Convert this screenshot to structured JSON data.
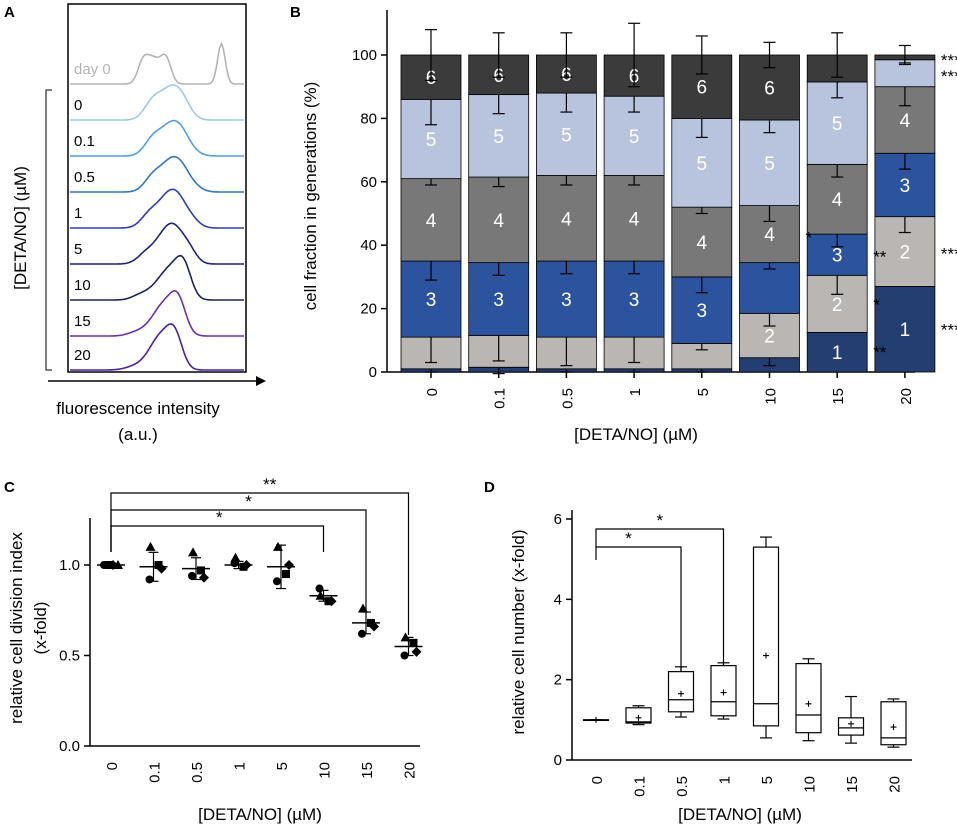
{
  "colors": {
    "gen": [
      "#243e72",
      "#b9b6b4",
      "#2c539e",
      "#787878",
      "#b8c4de",
      "#3b3b3b"
    ],
    "seg_label_dark": "#000000",
    "seg_label_light": "#ffffff",
    "hist_ctrl": "#b3b3b3"
  },
  "chart_data": [
    {
      "panel": "A",
      "type": "histogram",
      "title": "",
      "xlabel_line1": "fluorescence intensity",
      "xlabel_line2": "(a.u.)",
      "ylabel": "[DETA/NO] (µM)",
      "series": [
        {
          "name": "day 0",
          "color": "#b3b3b3"
        },
        {
          "name": "0",
          "color": "#9ecae8"
        },
        {
          "name": "0.1",
          "color": "#4f9fe0"
        },
        {
          "name": "0.5",
          "color": "#2f76c4"
        },
        {
          "name": "1",
          "color": "#2a3eb8"
        },
        {
          "name": "5",
          "color": "#1d2380"
        },
        {
          "name": "10",
          "color": "#1d2160"
        },
        {
          "name": "15",
          "color": "#6a2fb0"
        },
        {
          "name": "20",
          "color": "#4a1fa8"
        }
      ]
    },
    {
      "panel": "B",
      "type": "stacked-bar",
      "xlabel": "[DETA/NO] (µM)",
      "ylabel": "cell fraction in generations (%)",
      "ylim": [
        0,
        100
      ],
      "yticks": [
        "0",
        "20",
        "40",
        "60",
        "80",
        "100"
      ],
      "categories": [
        "0",
        "0.1",
        "0.5",
        "1",
        "5",
        "10",
        "15",
        "20"
      ],
      "series": [
        {
          "name": "1",
          "values": [
            1,
            1.5,
            1,
            1,
            1,
            4.5,
            12.5,
            27
          ]
        },
        {
          "name": "2",
          "values": [
            10,
            10,
            10,
            10,
            8,
            14,
            18,
            22
          ]
        },
        {
          "name": "3",
          "values": [
            24,
            23,
            24,
            24,
            21,
            16,
            13,
            20
          ]
        },
        {
          "name": "4",
          "values": [
            26,
            27,
            27,
            27,
            22,
            18,
            22,
            21
          ]
        },
        {
          "name": "5",
          "values": [
            25,
            26,
            26,
            25,
            28,
            27,
            26,
            8.5
          ]
        },
        {
          "name": "6",
          "values": [
            14,
            12.5,
            12,
            13,
            20,
            20.5,
            8.5,
            1.5
          ]
        }
      ],
      "errors": [
        [
          1,
          2,
          1,
          1,
          1,
          2.5,
          0,
          0
        ],
        [
          8,
          8,
          9,
          8,
          2,
          4,
          6,
          5
        ],
        [
          6,
          4,
          4,
          4,
          5,
          2,
          4,
          5
        ],
        [
          2,
          3,
          3,
          3,
          2,
          5,
          4,
          6
        ],
        [
          8,
          6,
          6,
          5,
          6,
          4,
          5,
          1
        ],
        [
          8,
          7,
          7,
          10,
          6,
          4,
          7,
          3
        ]
      ],
      "segment_labels": [
        [
          "",
          "",
          "",
          "",
          "",
          "",
          "1",
          "1"
        ],
        [
          "",
          "",
          "",
          "",
          "",
          "2",
          "2",
          "2"
        ],
        [
          "3",
          "3",
          "3",
          "3",
          "3",
          "",
          "3",
          "3"
        ],
        [
          "4",
          "4",
          "4",
          "4",
          "4",
          "4",
          "4",
          "4"
        ],
        [
          "5",
          "5",
          "5",
          "5",
          "5",
          "5",
          "5",
          ""
        ],
        [
          "6",
          "6",
          "6",
          "6",
          "6",
          "6",
          "",
          ""
        ]
      ],
      "annotations": [
        {
          "text": "***",
          "category": "20",
          "level": 99
        },
        {
          "text": "****",
          "category": "20",
          "level": 94
        },
        {
          "text": "*",
          "category": "10",
          "level": 43
        },
        {
          "text": "**",
          "category": "15",
          "level": 37
        },
        {
          "text": "***",
          "category": "20",
          "level": 38
        },
        {
          "text": "*",
          "category": "15",
          "level": 22
        },
        {
          "text": "****",
          "category": "20",
          "level": 14
        },
        {
          "text": "**",
          "category": "15",
          "level": 7
        }
      ]
    },
    {
      "panel": "C",
      "type": "scatter",
      "xlabel": "[DETA/NO] (µM)",
      "ylabel_line1": "relative cell division index",
      "ylabel_line2": "(x-fold)",
      "ylim": [
        0,
        1.25
      ],
      "yticks": [
        "0.0",
        "0.5",
        "1.0"
      ],
      "categories": [
        "0",
        "0.1",
        "0.5",
        "1",
        "5",
        "10",
        "15",
        "20"
      ],
      "mean": [
        1.0,
        0.99,
        0.98,
        1.0,
        0.99,
        0.83,
        0.68,
        0.55
      ],
      "sd": [
        0,
        0.08,
        0.06,
        0.02,
        0.12,
        0.03,
        0.06,
        0.05
      ],
      "points": {
        "circle": [
          1.0,
          0.92,
          0.94,
          1.01,
          0.91,
          0.87,
          0.62,
          0.5
        ],
        "square": [
          1.0,
          1.0,
          0.97,
          0.99,
          0.95,
          0.8,
          0.68,
          0.57
        ],
        "triangle": [
          1.0,
          1.1,
          1.07,
          1.04,
          1.1,
          0.83,
          0.76,
          0.6
        ],
        "diamond": [
          1.0,
          0.98,
          0.93,
          1.0,
          1.0,
          0.8,
          0.66,
          0.52
        ]
      },
      "brackets": [
        {
          "text": "*",
          "from": "0",
          "to": "10"
        },
        {
          "text": "*",
          "from": "0",
          "to": "15"
        },
        {
          "text": "**",
          "from": "0",
          "to": "20"
        }
      ]
    },
    {
      "panel": "D",
      "type": "boxplot",
      "xlabel": "[DETA/NO] (µM)",
      "ylabel": "relative cell number (x-fold)",
      "ylim": [
        0,
        6
      ],
      "yticks": [
        "0",
        "2",
        "4",
        "6"
      ],
      "categories": [
        "0",
        "0.1",
        "0.5",
        "1",
        "5",
        "10",
        "15",
        "20"
      ],
      "boxes": [
        {
          "min": 1.0,
          "q1": 1.0,
          "median": 1.0,
          "q3": 1.0,
          "max": 1.0,
          "mean": 1.0
        },
        {
          "min": 0.88,
          "q1": 0.92,
          "median": 0.95,
          "q3": 1.3,
          "max": 1.35,
          "mean": 1.05
        },
        {
          "min": 1.07,
          "q1": 1.2,
          "median": 1.5,
          "q3": 2.2,
          "max": 2.32,
          "mean": 1.65
        },
        {
          "min": 1.02,
          "q1": 1.1,
          "median": 1.45,
          "q3": 2.35,
          "max": 2.42,
          "mean": 1.68
        },
        {
          "min": 0.55,
          "q1": 0.85,
          "median": 1.4,
          "q3": 5.3,
          "max": 5.55,
          "mean": 2.6
        },
        {
          "min": 0.48,
          "q1": 0.68,
          "median": 1.12,
          "q3": 2.4,
          "max": 2.52,
          "mean": 1.4
        },
        {
          "min": 0.42,
          "q1": 0.62,
          "median": 0.8,
          "q3": 1.05,
          "max": 1.58,
          "mean": 0.9
        },
        {
          "min": 0.32,
          "q1": 0.38,
          "median": 0.55,
          "q3": 1.45,
          "max": 1.52,
          "mean": 0.82
        }
      ],
      "brackets": [
        {
          "text": "*",
          "from": "0",
          "to": "0.5"
        },
        {
          "text": "*",
          "from": "0",
          "to": "1"
        }
      ]
    }
  ]
}
